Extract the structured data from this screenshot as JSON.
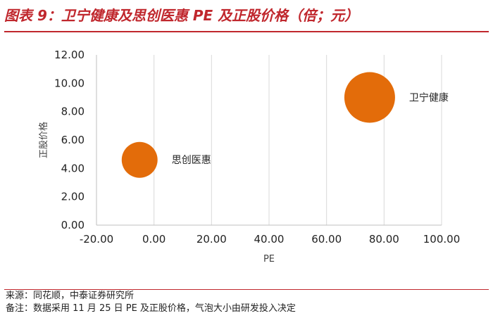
{
  "header": {
    "title": "图表 9：卫宁健康及思创医惠 PE 及正股价格（倍；元）"
  },
  "footer": {
    "source": "来源：同花顺，中泰证券研究所",
    "remark": "备注：数据采用 11 月 25 日 PE 及正股价格，气泡大小由研发投入决定"
  },
  "chart_data": {
    "type": "scatter",
    "title": "",
    "xlabel": "PE",
    "ylabel": "正股价格",
    "xlim": [
      -20,
      100
    ],
    "ylim": [
      0,
      12
    ],
    "x_ticks": [
      "-20.00",
      "0.00",
      "20.00",
      "40.00",
      "60.00",
      "80.00",
      "100.00"
    ],
    "y_ticks": [
      "0.00",
      "2.00",
      "4.00",
      "6.00",
      "8.00",
      "10.00",
      "12.00"
    ],
    "grid": "vertical",
    "bubble_color": "#e36c0a",
    "points": [
      {
        "label": "思创医惠",
        "x": -5,
        "y": 4.6,
        "size": 0.5
      },
      {
        "label": "卫宁健康",
        "x": 75,
        "y": 9.0,
        "size": 1.0
      }
    ]
  }
}
